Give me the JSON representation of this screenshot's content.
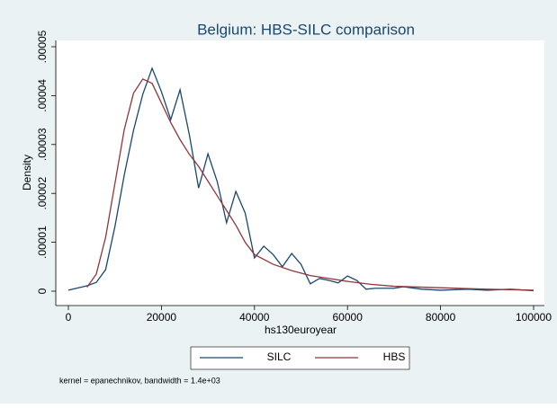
{
  "chart_data": {
    "type": "line",
    "title": "Belgium: HBS-SILC comparison",
    "xlabel": "hs130euroyear",
    "ylabel": "Density",
    "note": "kernel = epanechnikov, bandwidth =  1.4e+03",
    "xlim": [
      0,
      100000
    ],
    "xticks": [
      0,
      20000,
      40000,
      60000,
      80000,
      100000
    ],
    "ylim": [
      0,
      5e-05
    ],
    "yticks": [
      0,
      {
        "value": 1e-05,
        "label": ".00001"
      },
      {
        "value": 2e-05,
        "label": ".00002"
      },
      {
        "value": 3e-05,
        "label": ".00003"
      },
      {
        "value": 4e-05,
        "label": ".00004"
      },
      {
        "value": 5e-05,
        "label": ".00005"
      }
    ],
    "grid": false,
    "legend": "bottom",
    "series": [
      {
        "name": "SILC",
        "color": "#1a476f",
        "x": [
          0,
          4000,
          6000,
          8000,
          10000,
          12000,
          14000,
          16000,
          18000,
          20000,
          22000,
          24000,
          26000,
          28000,
          30000,
          32000,
          34000,
          36000,
          38000,
          40000,
          42000,
          44000,
          46000,
          48000,
          50000,
          52000,
          54000,
          56000,
          58000,
          60000,
          62000,
          64000,
          66000,
          70000,
          72000,
          76000,
          80000,
          86000,
          90000,
          95000,
          100000
        ],
        "values": [
          2e-07,
          1.1e-06,
          1.8e-06,
          4.4e-06,
          1.32e-05,
          2.37e-05,
          3.29e-05,
          4.03e-05,
          4.56e-05,
          4.08e-05,
          3.51e-05,
          4.12e-05,
          3.2e-05,
          2.11e-05,
          2.81e-05,
          2.24e-05,
          1.4e-05,
          2.04e-05,
          1.6e-05,
          6.8e-06,
          9.2e-06,
          7.5e-06,
          5e-06,
          7.7e-06,
          5.5e-06,
          1.5e-06,
          2.6e-06,
          2.2e-06,
          1.7e-06,
          3.1e-06,
          2.2e-06,
          4e-07,
          6e-07,
          6e-07,
          9e-07,
          4e-07,
          2e-07,
          4e-07,
          2e-07,
          4e-07,
          1e-07
        ]
      },
      {
        "name": "HBS",
        "color": "#90353b",
        "x": [
          4000,
          6000,
          8000,
          10000,
          12000,
          14000,
          16000,
          18000,
          20000,
          22000,
          24000,
          26000,
          28000,
          30000,
          32000,
          34000,
          36000,
          38000,
          40000,
          44000,
          48000,
          52000,
          56000,
          60000,
          65000,
          70000,
          80000,
          90000,
          100000
        ],
        "values": [
          8e-07,
          3.5e-06,
          1.1e-05,
          2.2e-05,
          3.3e-05,
          4.05e-05,
          4.34e-05,
          4.25e-05,
          3.85e-05,
          3.45e-05,
          3.1e-05,
          2.8e-05,
          2.55e-05,
          2.25e-05,
          1.95e-05,
          1.65e-05,
          1.35e-05,
          1e-05,
          7.5e-06,
          5.5e-06,
          4.2e-06,
          3.2e-06,
          2.6e-06,
          2e-06,
          1.4e-06,
          1e-06,
          7e-07,
          4e-07,
          2e-07
        ]
      }
    ]
  }
}
